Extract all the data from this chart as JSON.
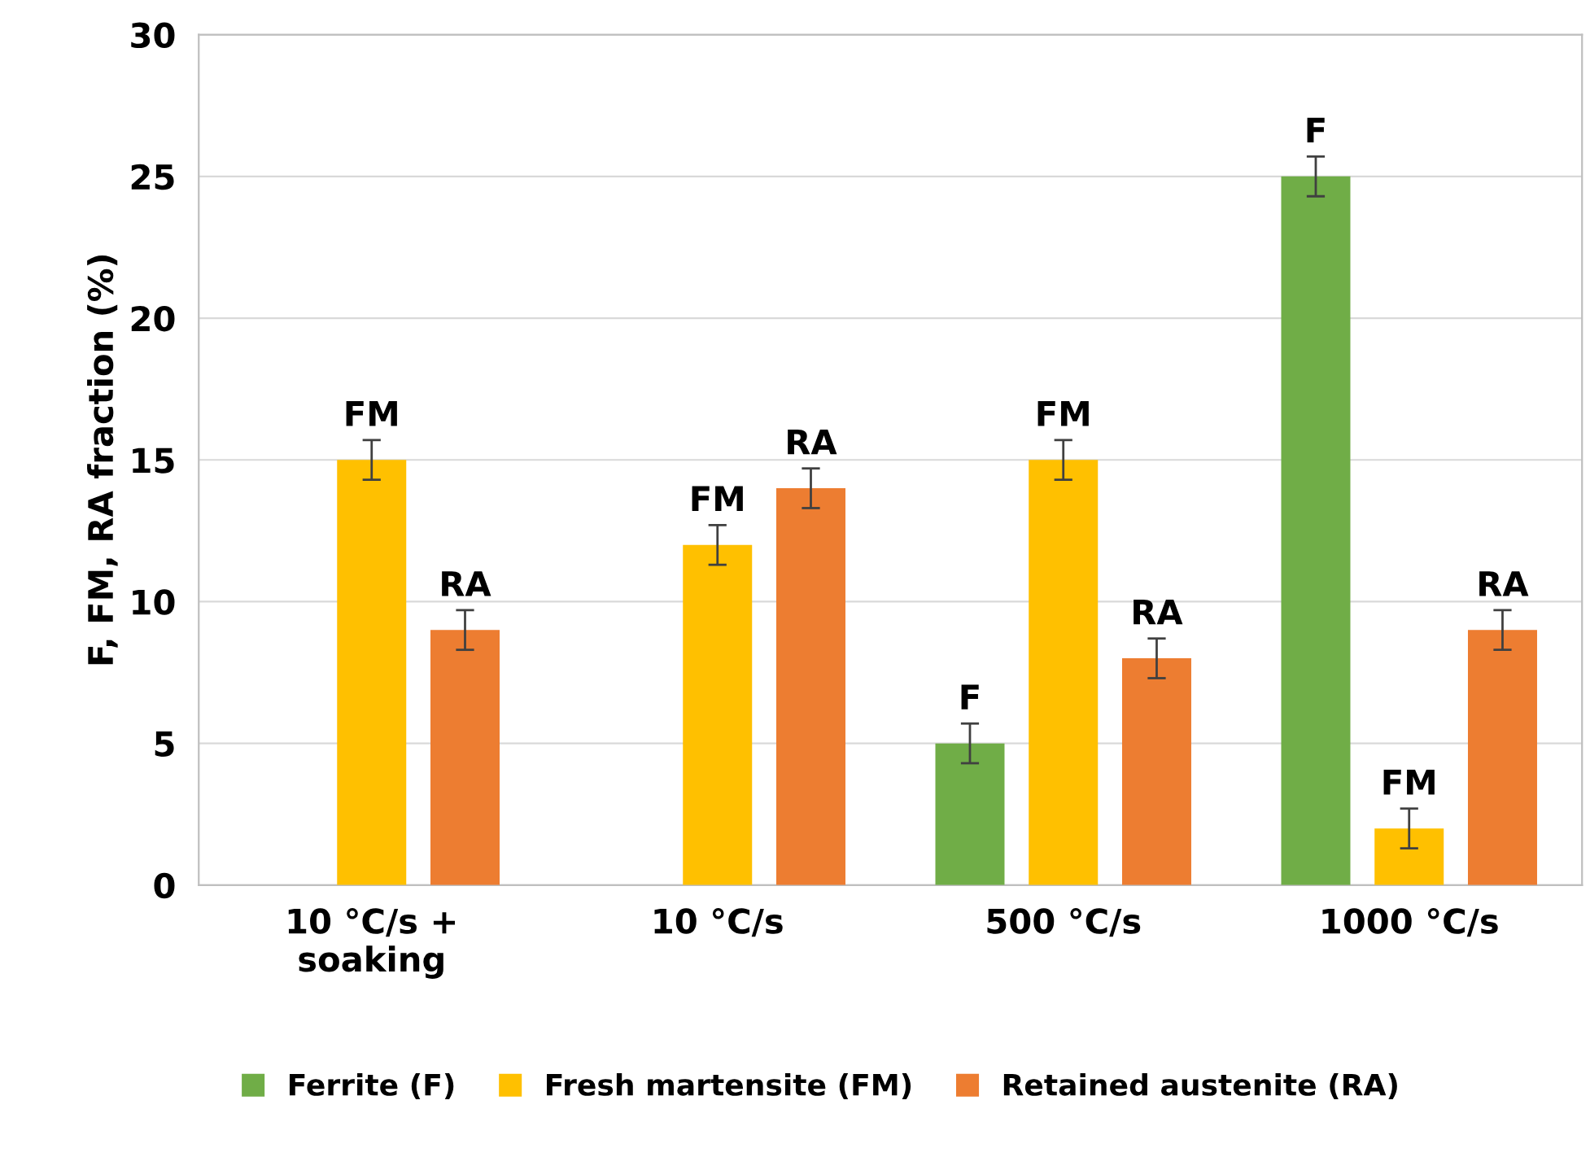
{
  "chart_data": {
    "type": "bar",
    "ylabel": "F, FM, RA fraction (%)",
    "categories": [
      "10 °C/s +\nsoaking",
      "10 °C/s",
      "500 °C/s",
      "1000 °C/s"
    ],
    "series": [
      {
        "name": "Ferrite (F)",
        "color": "#70ad47",
        "values": [
          null,
          null,
          5,
          25
        ],
        "errors": [
          null,
          null,
          0.7,
          0.7
        ],
        "value_labels": [
          null,
          null,
          "F",
          "F"
        ]
      },
      {
        "name": "Fresh martensite (FM)",
        "color": "#ffc000",
        "values": [
          15,
          12,
          15,
          2
        ],
        "errors": [
          0.7,
          0.7,
          0.7,
          0.7
        ],
        "value_labels": [
          "FM",
          "FM",
          "FM",
          "FM"
        ]
      },
      {
        "name": "Retained austenite (RA)",
        "color": "#ed7d31",
        "values": [
          9,
          14,
          8,
          9
        ],
        "errors": [
          0.7,
          0.7,
          0.7,
          0.7
        ],
        "value_labels": [
          "RA",
          "RA",
          "RA",
          "RA"
        ]
      }
    ],
    "ylim": [
      0,
      30
    ],
    "yticks": [
      0,
      5,
      10,
      15,
      20,
      25,
      30
    ],
    "grid": "y",
    "legend": "bottom"
  }
}
